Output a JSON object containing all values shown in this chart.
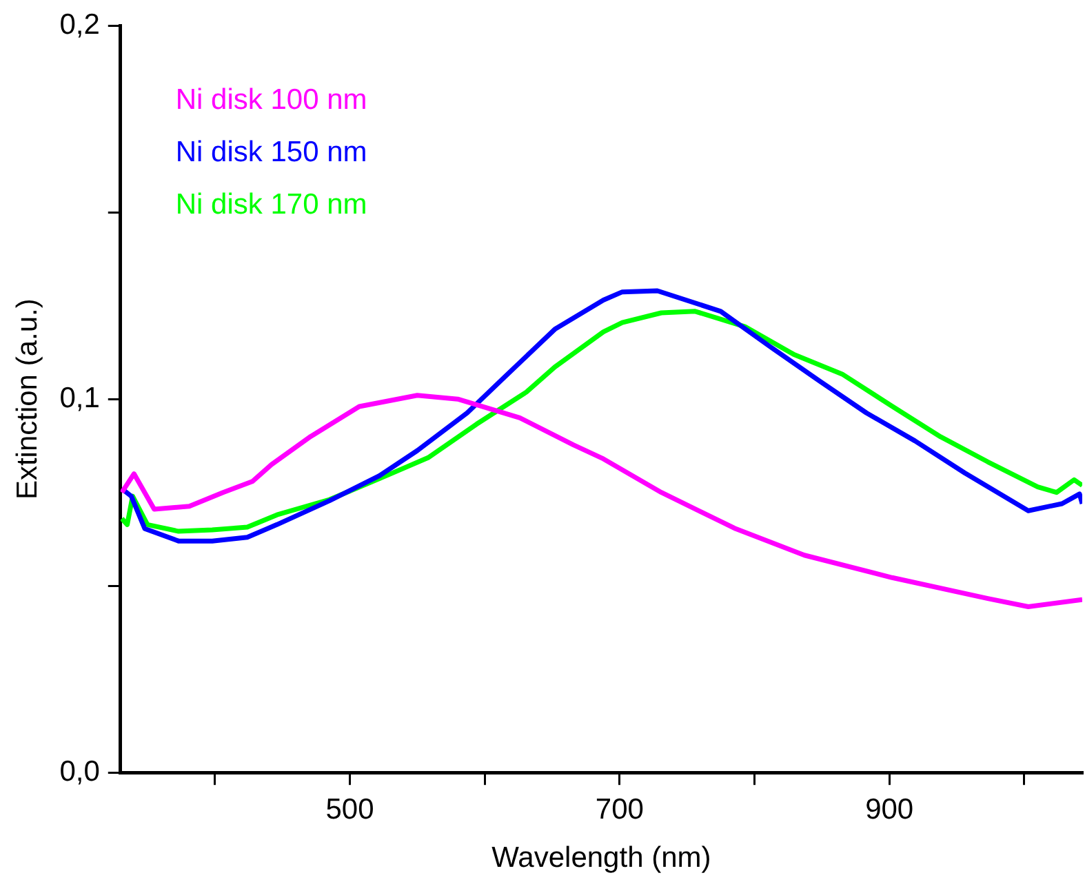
{
  "chart_data": {
    "type": "line",
    "xlabel": "Wavelength (nm)",
    "ylabel": "Extinction (a.u.)",
    "xlim": [
      330,
      1043
    ],
    "ylim": [
      0,
      0.2
    ],
    "xticks": [
      {
        "value": 400,
        "label": null
      },
      500,
      {
        "value": 600,
        "label": null
      },
      700,
      {
        "value": 800,
        "label": null
      },
      900,
      {
        "value": 1000,
        "label": null
      }
    ],
    "yticks": [
      {
        "value": 0,
        "label": "0,0"
      },
      {
        "value": 0.05,
        "label": null
      },
      {
        "value": 0.1,
        "label": "0,1"
      },
      {
        "value": 0.15,
        "label": null
      },
      {
        "value": 0.2,
        "label": "0,2"
      }
    ],
    "grid": false,
    "legend": "top left",
    "marker": "none",
    "line_style": "solid",
    "series": [
      {
        "name": "Ni disk 100 nm",
        "color": "#ff00ff",
        "x": [
          331,
          340,
          355,
          381,
          406,
          428,
          442,
          471,
          507,
          550,
          580,
          626,
          666,
          688,
          731,
          786,
          837,
          902,
          973,
          1003,
          1043
        ],
        "values": [
          0.075,
          0.08,
          0.0705,
          0.0713,
          0.075,
          0.078,
          0.0825,
          0.09,
          0.098,
          0.101,
          0.1,
          0.095,
          0.0877,
          0.084,
          0.075,
          0.0653,
          0.0582,
          0.0522,
          0.0466,
          0.0444,
          0.0463
        ]
      },
      {
        "name": "Ni disk 150 nm",
        "color": "#0000ff",
        "x": [
          331,
          338,
          348,
          373,
          398,
          424,
          446,
          485,
          522,
          550,
          587,
          615,
          652,
          688,
          702,
          728,
          775,
          811,
          848,
          883,
          919,
          956,
          1003,
          1028,
          1041,
          1043
        ],
        "values": [
          0.076,
          0.074,
          0.0653,
          0.062,
          0.062,
          0.063,
          0.0664,
          0.0728,
          0.0795,
          0.0862,
          0.0963,
          0.106,
          0.1187,
          0.1265,
          0.1287,
          0.129,
          0.1235,
          0.1142,
          0.1049,
          0.0963,
          0.0888,
          0.0802,
          0.0701,
          0.072,
          0.0746,
          0.072
        ]
      },
      {
        "name": "Ni disk 170 nm",
        "color": "#00ff00",
        "x": [
          331,
          335,
          339,
          350,
          373,
          398,
          424,
          446,
          485,
          522,
          558,
          594,
          631,
          652,
          688,
          702,
          731,
          756,
          793,
          829,
          865,
          902,
          938,
          973,
          1010,
          1024,
          1037,
          1043
        ],
        "values": [
          0.068,
          0.0664,
          0.074,
          0.0664,
          0.0646,
          0.065,
          0.0657,
          0.069,
          0.0731,
          0.0787,
          0.0843,
          0.0933,
          0.1019,
          0.1086,
          0.118,
          0.1205,
          0.1231,
          0.1235,
          0.1194,
          0.112,
          0.1067,
          0.0981,
          0.0899,
          0.0832,
          0.0765,
          0.075,
          0.0784,
          0.0769
        ]
      }
    ]
  }
}
